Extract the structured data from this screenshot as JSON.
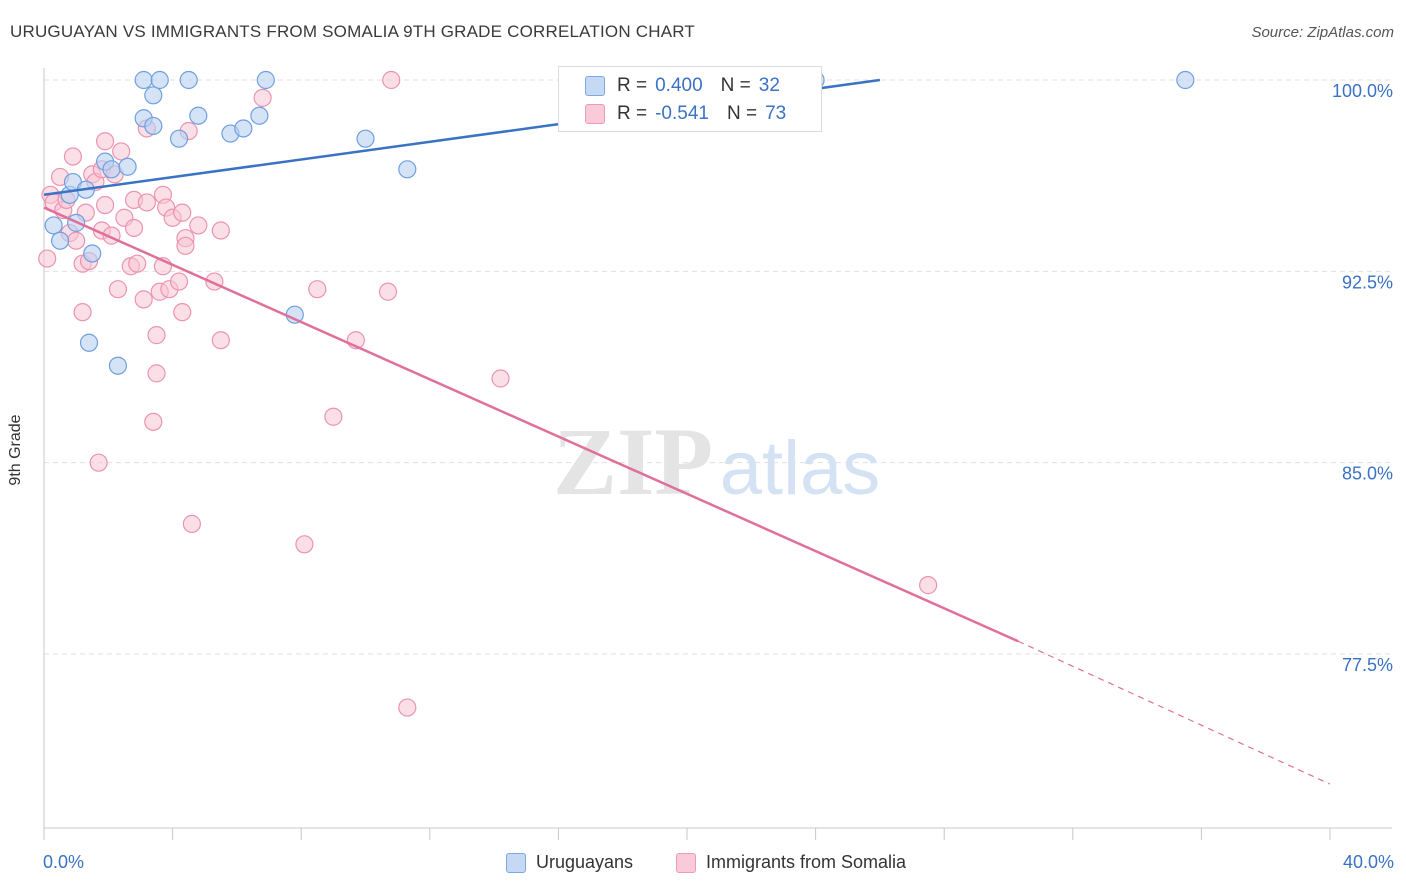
{
  "header": {
    "title": "URUGUAYAN VS IMMIGRANTS FROM SOMALIA 9TH GRADE CORRELATION CHART",
    "source": "Source: ZipAtlas.com"
  },
  "watermark": {
    "zip": "ZIP",
    "atlas": "atlas"
  },
  "stats": {
    "rows": [
      {
        "r_label": "R =",
        "r_value": "0.400",
        "n_label": "N =",
        "n_value": "32",
        "color": "#aac8f0"
      },
      {
        "r_label": "R =",
        "r_value": "-0.541",
        "n_label": "N =",
        "n_value": "73",
        "color": "#f5b8cc"
      }
    ]
  },
  "legend": {
    "items": [
      {
        "label": "Uruguayans",
        "color": "#aac8f0"
      },
      {
        "label": "Immigrants from Somalia",
        "color": "#f5b8cc"
      }
    ]
  },
  "x_axis": {
    "min_label": "0.0%",
    "max_label": "40.0%"
  },
  "chart_data": {
    "type": "scatter",
    "title": "URUGUAYAN VS IMMIGRANTS FROM SOMALIA 9TH GRADE CORRELATION CHART",
    "xlabel": "",
    "ylabel": "9th Grade",
    "xlim": [
      0,
      40
    ],
    "ylim": [
      71.5,
      100.3
    ],
    "y_ticks": [
      77.5,
      85.0,
      92.5,
      100.0
    ],
    "y_tick_labels": [
      "77.5%",
      "85.0%",
      "92.5%",
      "100.0%"
    ],
    "grid": "horizontal dashed",
    "legend_position": "bottom",
    "series": [
      {
        "name": "Uruguayans",
        "color": "#6f9fe0",
        "points": [
          [
            0.3,
            94.3
          ],
          [
            0.5,
            93.7
          ],
          [
            0.8,
            95.5
          ],
          [
            0.9,
            96.0
          ],
          [
            1.0,
            94.4
          ],
          [
            1.3,
            95.7
          ],
          [
            1.5,
            93.2
          ],
          [
            1.4,
            89.7
          ],
          [
            1.9,
            96.8
          ],
          [
            2.1,
            96.5
          ],
          [
            2.3,
            88.8
          ],
          [
            2.6,
            96.6
          ],
          [
            3.1,
            98.5
          ],
          [
            3.1,
            100.0
          ],
          [
            3.4,
            98.2
          ],
          [
            3.4,
            99.4
          ],
          [
            3.6,
            100.0
          ],
          [
            4.2,
            97.7
          ],
          [
            4.5,
            100.0
          ],
          [
            4.8,
            98.6
          ],
          [
            5.8,
            97.9
          ],
          [
            6.2,
            98.1
          ],
          [
            6.7,
            98.6
          ],
          [
            6.9,
            100.0
          ],
          [
            7.8,
            90.8
          ],
          [
            10.0,
            97.7
          ],
          [
            11.3,
            96.5
          ],
          [
            24.0,
            100.0
          ],
          [
            35.5,
            100.0
          ]
        ],
        "trendline": {
          "x": [
            0.0,
            26.0
          ],
          "y": [
            95.5,
            100.0
          ]
        }
      },
      {
        "name": "Immigrants from Somalia",
        "color": "#e8709a",
        "points": [
          [
            0.1,
            93.0
          ],
          [
            0.2,
            95.5
          ],
          [
            0.3,
            95.2
          ],
          [
            0.5,
            96.2
          ],
          [
            0.6,
            94.9
          ],
          [
            0.7,
            95.3
          ],
          [
            0.8,
            94.0
          ],
          [
            0.9,
            97.0
          ],
          [
            1.0,
            93.7
          ],
          [
            1.2,
            90.9
          ],
          [
            1.2,
            92.8
          ],
          [
            1.3,
            94.8
          ],
          [
            1.4,
            92.9
          ],
          [
            1.5,
            96.3
          ],
          [
            1.6,
            96.0
          ],
          [
            1.7,
            85.0
          ],
          [
            1.8,
            94.1
          ],
          [
            1.8,
            96.5
          ],
          [
            1.9,
            95.1
          ],
          [
            1.9,
            97.6
          ],
          [
            2.1,
            93.9
          ],
          [
            2.2,
            96.3
          ],
          [
            2.3,
            91.8
          ],
          [
            2.4,
            97.2
          ],
          [
            2.5,
            94.6
          ],
          [
            2.7,
            92.7
          ],
          [
            2.8,
            95.3
          ],
          [
            2.8,
            94.2
          ],
          [
            2.9,
            92.8
          ],
          [
            3.1,
            91.4
          ],
          [
            3.2,
            98.1
          ],
          [
            3.2,
            95.2
          ],
          [
            3.4,
            86.6
          ],
          [
            3.5,
            88.5
          ],
          [
            3.5,
            90.0
          ],
          [
            3.6,
            91.7
          ],
          [
            3.7,
            92.7
          ],
          [
            3.7,
            95.5
          ],
          [
            3.8,
            95.0
          ],
          [
            3.9,
            91.8
          ],
          [
            4.0,
            94.6
          ],
          [
            4.2,
            92.1
          ],
          [
            4.3,
            94.8
          ],
          [
            4.3,
            90.9
          ],
          [
            4.4,
            93.8
          ],
          [
            4.4,
            93.5
          ],
          [
            4.5,
            98.0
          ],
          [
            4.6,
            82.6
          ],
          [
            4.8,
            94.3
          ],
          [
            5.3,
            92.1
          ],
          [
            5.5,
            94.1
          ],
          [
            5.5,
            89.8
          ],
          [
            6.8,
            99.3
          ],
          [
            8.1,
            81.8
          ],
          [
            8.5,
            91.8
          ],
          [
            9.0,
            86.8
          ],
          [
            9.7,
            89.8
          ],
          [
            10.7,
            91.7
          ],
          [
            10.8,
            100.0
          ],
          [
            11.3,
            75.4
          ],
          [
            14.2,
            88.3
          ],
          [
            27.5,
            80.2
          ]
        ],
        "trendline": {
          "x": [
            0.0,
            30.3
          ],
          "y": [
            95.0,
            78.0
          ]
        },
        "trendline_extension": {
          "x": [
            30.3,
            40.0
          ],
          "y": [
            78.0,
            72.4
          ]
        }
      }
    ]
  }
}
